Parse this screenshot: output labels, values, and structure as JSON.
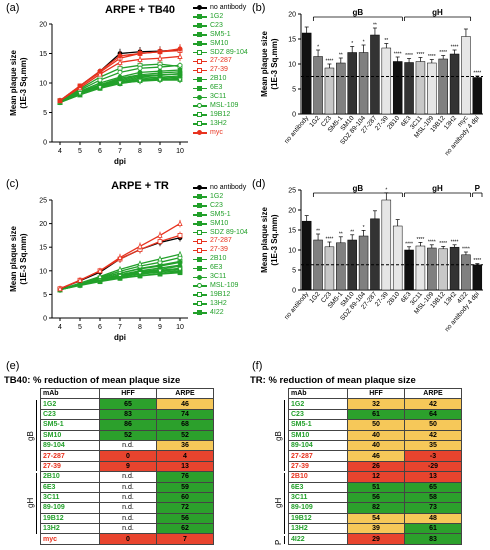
{
  "panels": {
    "a": {
      "letter": "(a)",
      "title": "ARPE + TB40"
    },
    "b": {
      "letter": "(b)"
    },
    "c": {
      "letter": "(c)",
      "title": "ARPE + TR"
    },
    "d": {
      "letter": "(d)"
    },
    "e": {
      "letter": "(e)",
      "title": "TB40: % reduction of mean plaque size"
    },
    "f": {
      "letter": "(f)",
      "title": "TR: % reduction of mean plaque size"
    }
  },
  "colors": {
    "black": "#000000",
    "green": "#22a02a",
    "red": "#e8321e",
    "bar_dark": "#333333",
    "bar_mid": "#808080",
    "bar_light": "#c8c8c8",
    "bar_pale": "#e6e6e6",
    "cell_green": "#2ca02c",
    "cell_yellow": "#f6c859",
    "cell_red": "#e8442e"
  },
  "chart_data": [
    {
      "id": "a",
      "type": "line",
      "title": "ARPE + TB40",
      "xlabel": "dpi",
      "ylabel": "Mean plaque size\n(1E-3 Sq.mm)",
      "x": [
        4,
        5,
        6,
        7,
        8,
        9,
        10
      ],
      "xlim": [
        3.6,
        10.4
      ],
      "ylim": [
        0,
        20
      ],
      "yticks": [
        0,
        5,
        10,
        15,
        20
      ],
      "series": [
        {
          "name": "no antibody",
          "color": "black",
          "marker": "circle",
          "values": [
            7,
            9.5,
            12,
            15,
            15.3,
            15.4,
            15.6
          ]
        },
        {
          "name": "1G2",
          "color": "green",
          "marker": "square",
          "values": [
            6.8,
            8.3,
            9.5,
            10.4,
            11,
            11.3,
            11.6
          ]
        },
        {
          "name": "C23",
          "color": "green",
          "marker": "square",
          "values": [
            6.8,
            8.2,
            9.3,
            10.2,
            10.8,
            11,
            11.2
          ]
        },
        {
          "name": "SM5-1",
          "color": "green",
          "marker": "triangle",
          "values": [
            6.7,
            8,
            9.2,
            10,
            10.6,
            10.8,
            11
          ]
        },
        {
          "name": "SM10",
          "color": "green",
          "marker": "triangle",
          "values": [
            6.7,
            8,
            9.1,
            9.9,
            10.4,
            10.6,
            10.8
          ]
        },
        {
          "name": "SDZ 89-104",
          "color": "green",
          "marker": "open-square",
          "values": [
            7,
            9,
            11,
            12.5,
            13,
            13.2,
            12.8
          ]
        },
        {
          "name": "27-287",
          "color": "red",
          "marker": "open-square",
          "values": [
            7,
            9.5,
            11.8,
            14.2,
            15,
            15.3,
            15.5
          ]
        },
        {
          "name": "27-39",
          "color": "red",
          "marker": "open-triangle",
          "values": [
            7,
            9.2,
            11.5,
            13.5,
            14,
            14.2,
            14.5
          ]
        },
        {
          "name": "2B10",
          "color": "green",
          "marker": "triangle-down",
          "values": [
            6.8,
            8.4,
            9.6,
            10.6,
            11.2,
            11.4,
            11.5
          ]
        },
        {
          "name": "6E3",
          "color": "green",
          "marker": "diamond",
          "values": [
            6.8,
            8.5,
            9.7,
            10.8,
            11.4,
            11.7,
            11.9
          ]
        },
        {
          "name": "3C11",
          "color": "green",
          "marker": "circle",
          "values": [
            6.8,
            8.6,
            10,
            11,
            11.8,
            12,
            12.2
          ]
        },
        {
          "name": "MSL-109",
          "color": "green",
          "marker": "open-circle",
          "values": [
            6.9,
            8.8,
            10.5,
            11.8,
            12.5,
            12.7,
            13
          ]
        },
        {
          "name": "19B12",
          "color": "green",
          "marker": "open-triangle",
          "values": [
            6.8,
            8.3,
            9.4,
            10.2,
            10.5,
            10.7,
            10.6
          ]
        },
        {
          "name": "13H2",
          "color": "green",
          "marker": "open-triangle-down",
          "values": [
            6.8,
            8.2,
            9.2,
            10,
            10.3,
            10.5,
            10.5
          ]
        },
        {
          "name": "myc",
          "color": "red",
          "marker": "circle",
          "values": [
            7,
            9.5,
            12,
            14.6,
            15,
            15.3,
            15.8
          ]
        }
      ]
    },
    {
      "id": "b",
      "type": "bar",
      "ylabel": "Mean plaque size\n(1E-3 Sq.mm)",
      "ylim": [
        0,
        20
      ],
      "yticks": [
        0,
        5,
        10,
        15,
        20
      ],
      "dashed_line": 7.5,
      "groups": [
        {
          "label": "gB",
          "from": 1,
          "to": 8
        },
        {
          "label": "gH",
          "from": 9,
          "to": 14
        }
      ],
      "categories": [
        "no antibody",
        "1G2",
        "C23",
        "SM5-1",
        "SM10",
        "SDZ 89-104",
        "27-287",
        "27-39",
        "2B10",
        "6E3",
        "3C11",
        "MSL-109",
        "19B12",
        "13H2",
        "myc",
        "no antibody 4 dpi"
      ],
      "values": [
        16.2,
        11.5,
        9.2,
        10.2,
        12.3,
        12.3,
        15.8,
        13.2,
        10.5,
        10.3,
        10.5,
        10.2,
        11,
        12,
        15.5,
        7.3
      ],
      "errors": [
        1.2,
        1.3,
        0.8,
        1,
        1.2,
        1.5,
        1.4,
        0.9,
        0.9,
        0.8,
        0.8,
        0.7,
        0.7,
        0.8,
        1.5,
        0.3
      ],
      "sig": [
        "",
        "*",
        "****",
        "**",
        "*",
        "*",
        "**",
        "**",
        "****",
        "****",
        "****",
        "****",
        "****",
        "****",
        "",
        "****"
      ],
      "shades": [
        "black",
        "mid",
        "light",
        "mid",
        "dark",
        "mid",
        "dark",
        "pale",
        "black",
        "dark",
        "light",
        "pale",
        "mid",
        "dark",
        "pale",
        "black"
      ]
    },
    {
      "id": "c",
      "type": "line",
      "title": "ARPE + TR",
      "xlabel": "dpi",
      "ylabel": "Mean plaque size\n(1E-3 Sq.mm)",
      "x": [
        4,
        5,
        6,
        7,
        8,
        9,
        10
      ],
      "xlim": [
        3.6,
        10.4
      ],
      "ylim": [
        0,
        25
      ],
      "yticks": [
        0,
        5,
        10,
        15,
        20,
        25
      ],
      "series": [
        {
          "name": "no antibody",
          "color": "black",
          "marker": "circle",
          "values": [
            6.2,
            7.9,
            9.7,
            12.5,
            14.5,
            16,
            17
          ]
        },
        {
          "name": "1G2",
          "color": "green",
          "marker": "square",
          "values": [
            6,
            7,
            7.8,
            8.5,
            9,
            9.4,
            9.8
          ]
        },
        {
          "name": "C23",
          "color": "green",
          "marker": "square",
          "values": [
            6,
            7,
            7.9,
            8.7,
            9.3,
            9.7,
            10
          ]
        },
        {
          "name": "SM5-1",
          "color": "green",
          "marker": "triangle",
          "values": [
            6,
            7.1,
            8,
            8.9,
            9.5,
            10,
            10.5
          ]
        },
        {
          "name": "SM10",
          "color": "green",
          "marker": "triangle",
          "values": [
            6,
            7.2,
            8.2,
            9.1,
            9.8,
            10.3,
            11
          ]
        },
        {
          "name": "SDZ 89-104",
          "color": "green",
          "marker": "open-square",
          "values": [
            6,
            7.3,
            8.5,
            9.5,
            10.5,
            11.2,
            12
          ]
        },
        {
          "name": "27-287",
          "color": "red",
          "marker": "open-square",
          "values": [
            6.2,
            8,
            10,
            12.5,
            14.5,
            16.2,
            17.5
          ]
        },
        {
          "name": "27-39",
          "color": "red",
          "marker": "open-triangle",
          "values": [
            6.2,
            8,
            10,
            12.8,
            15.2,
            17.5,
            20
          ]
        },
        {
          "name": "2B10",
          "color": "green",
          "marker": "triangle-down",
          "values": [
            6,
            7,
            8,
            9,
            9.6,
            10.1,
            10.5
          ]
        },
        {
          "name": "6E3",
          "color": "green",
          "marker": "diamond",
          "values": [
            6,
            7.1,
            8.2,
            9.2,
            10,
            10.6,
            11.2
          ]
        },
        {
          "name": "3C11",
          "color": "green",
          "marker": "circle",
          "values": [
            6,
            7.2,
            8.4,
            9.5,
            10.4,
            11,
            11.8
          ]
        },
        {
          "name": "MSL-109",
          "color": "green",
          "marker": "open-circle",
          "values": [
            6,
            7.3,
            8.6,
            9.9,
            11,
            11.8,
            12.8
          ]
        },
        {
          "name": "19B12",
          "color": "green",
          "marker": "open-triangle",
          "values": [
            6,
            7.4,
            8.8,
            10.3,
            11.5,
            12.5,
            13.5
          ]
        },
        {
          "name": "13H2",
          "color": "green",
          "marker": "open-triangle-down",
          "values": [
            6,
            7,
            7.9,
            8.8,
            9.4,
            9.9,
            10.3
          ]
        },
        {
          "name": "4I22",
          "color": "green",
          "marker": "square",
          "values": [
            6,
            6.9,
            7.7,
            8.4,
            8.9,
            9.3,
            9.6
          ]
        }
      ]
    },
    {
      "id": "d",
      "type": "bar",
      "ylabel": "Mean plaque size\n(1E-3 Sq.mm)",
      "ylim": [
        0,
        25
      ],
      "yticks": [
        0,
        5,
        10,
        15,
        20,
        25
      ],
      "dashed_line": 6.3,
      "groups": [
        {
          "label": "gB",
          "from": 1,
          "to": 8
        },
        {
          "label": "gH",
          "from": 9,
          "to": 14
        },
        {
          "label": "P",
          "from": 15,
          "to": 15
        }
      ],
      "categories": [
        "no antibody",
        "1G2",
        "C23",
        "SM5-1",
        "SM10",
        "SDZ 89-104",
        "27-287",
        "27-39",
        "2B10",
        "6E3",
        "3C11",
        "MSL-109",
        "19B12",
        "13H2",
        "4I22",
        "no antibody 4 dpi"
      ],
      "values": [
        17.2,
        12.5,
        10.8,
        11.8,
        12.5,
        13.5,
        17.8,
        22.5,
        16,
        10,
        11,
        10.5,
        10.3,
        10.7,
        8.8,
        6.3
      ],
      "errors": [
        1.4,
        1.5,
        1.2,
        1.5,
        1.3,
        1.4,
        2,
        1.8,
        1.6,
        0.8,
        0.9,
        0.8,
        0.6,
        0.6,
        0.7,
        0.3
      ],
      "sig": [
        "",
        "**",
        "****",
        "**",
        "**",
        "*",
        "",
        "*",
        "",
        "****",
        "****",
        "****",
        "****",
        "****",
        "****",
        "****"
      ],
      "shades": [
        "black",
        "mid",
        "light",
        "mid",
        "dark",
        "mid",
        "dark",
        "pale",
        "pale",
        "black",
        "pale",
        "mid",
        "light",
        "dark",
        "mid",
        "black"
      ]
    },
    {
      "id": "e",
      "type": "table",
      "title": "TB40: % reduction of mean plaque size",
      "columns": [
        "mAb",
        "HFF",
        "ARPE"
      ],
      "sections": [
        {
          "label": "gB",
          "rows": 7
        },
        {
          "label": "gH",
          "rows": 6
        }
      ],
      "rows": [
        {
          "mab": "1G2",
          "mab_color": "green",
          "hff": "65",
          "hff_fill": "green",
          "arpe": "46",
          "arpe_fill": "yellow"
        },
        {
          "mab": "C23",
          "mab_color": "green",
          "hff": "83",
          "hff_fill": "green",
          "arpe": "74",
          "arpe_fill": "green"
        },
        {
          "mab": "SM5-1",
          "mab_color": "green",
          "hff": "86",
          "hff_fill": "green",
          "arpe": "68",
          "arpe_fill": "green"
        },
        {
          "mab": "SM10",
          "mab_color": "green",
          "hff": "52",
          "hff_fill": "green",
          "arpe": "52",
          "arpe_fill": "green"
        },
        {
          "mab": "89-104",
          "mab_color": "green",
          "hff": "n.d.",
          "hff_fill": "none",
          "arpe": "36",
          "arpe_fill": "yellow"
        },
        {
          "mab": "27-287",
          "mab_color": "red",
          "hff": "0",
          "hff_fill": "red",
          "arpe": "4",
          "arpe_fill": "red"
        },
        {
          "mab": "27-39",
          "mab_color": "red",
          "hff": "9",
          "hff_fill": "red",
          "arpe": "13",
          "arpe_fill": "red"
        },
        {
          "mab": "2B10",
          "mab_color": "green",
          "hff": "n.d.",
          "hff_fill": "none",
          "arpe": "76",
          "arpe_fill": "green"
        },
        {
          "mab": "6E3",
          "mab_color": "green",
          "hff": "n.d.",
          "hff_fill": "none",
          "arpe": "59",
          "arpe_fill": "green"
        },
        {
          "mab": "3C11",
          "mab_color": "green",
          "hff": "n.d.",
          "hff_fill": "none",
          "arpe": "60",
          "arpe_fill": "green"
        },
        {
          "mab": "89-109",
          "mab_color": "green",
          "hff": "n.d.",
          "hff_fill": "none",
          "arpe": "72",
          "arpe_fill": "green"
        },
        {
          "mab": "19B12",
          "mab_color": "green",
          "hff": "n.d.",
          "hff_fill": "none",
          "arpe": "56",
          "arpe_fill": "green"
        },
        {
          "mab": "13H2",
          "mab_color": "green",
          "hff": "n.d.",
          "hff_fill": "none",
          "arpe": "62",
          "arpe_fill": "green"
        },
        {
          "mab": "myc",
          "mab_color": "red",
          "hff": "0",
          "hff_fill": "red",
          "arpe": "7",
          "arpe_fill": "red"
        }
      ]
    },
    {
      "id": "f",
      "type": "table",
      "title": "TR: % reduction of mean plaque size",
      "columns": [
        "mAb",
        "HFF",
        "ARPE"
      ],
      "sections": [
        {
          "label": "gB",
          "rows": 7
        },
        {
          "label": "gH",
          "rows": 6
        },
        {
          "label": "P",
          "rows": 1
        }
      ],
      "rows": [
        {
          "mab": "1G2",
          "mab_color": "green",
          "hff": "32",
          "hff_fill": "yellow",
          "arpe": "42",
          "arpe_fill": "yellow"
        },
        {
          "mab": "C23",
          "mab_color": "green",
          "hff": "61",
          "hff_fill": "green",
          "arpe": "64",
          "arpe_fill": "green"
        },
        {
          "mab": "SM5-1",
          "mab_color": "green",
          "hff": "50",
          "hff_fill": "yellow",
          "arpe": "50",
          "arpe_fill": "yellow"
        },
        {
          "mab": "SM10",
          "mab_color": "green",
          "hff": "40",
          "hff_fill": "yellow",
          "arpe": "42",
          "arpe_fill": "yellow"
        },
        {
          "mab": "89-104",
          "mab_color": "green",
          "hff": "40",
          "hff_fill": "yellow",
          "arpe": "35",
          "arpe_fill": "yellow"
        },
        {
          "mab": "27-287",
          "mab_color": "red",
          "hff": "46",
          "hff_fill": "yellow",
          "arpe": "-3",
          "arpe_fill": "red"
        },
        {
          "mab": "27-39",
          "mab_color": "red",
          "hff": "26",
          "hff_fill": "red",
          "arpe": "-29",
          "arpe_fill": "red"
        },
        {
          "mab": "2B10",
          "mab_color": "red",
          "hff": "12",
          "hff_fill": "red",
          "arpe": "13",
          "arpe_fill": "red"
        },
        {
          "mab": "6E3",
          "mab_color": "green",
          "hff": "51",
          "hff_fill": "green",
          "arpe": "65",
          "arpe_fill": "green"
        },
        {
          "mab": "3C11",
          "mab_color": "green",
          "hff": "56",
          "hff_fill": "green",
          "arpe": "58",
          "arpe_fill": "green"
        },
        {
          "mab": "89-109",
          "mab_color": "green",
          "hff": "82",
          "hff_fill": "green",
          "arpe": "73",
          "arpe_fill": "green"
        },
        {
          "mab": "19B12",
          "mab_color": "green",
          "hff": "54",
          "hff_fill": "yellow",
          "arpe": "48",
          "arpe_fill": "yellow"
        },
        {
          "mab": "13H2",
          "mab_color": "green",
          "hff": "39",
          "hff_fill": "yellow",
          "arpe": "61",
          "arpe_fill": "green"
        },
        {
          "mab": "4I22",
          "mab_color": "green",
          "hff": "29",
          "hff_fill": "red",
          "arpe": "83",
          "arpe_fill": "green"
        }
      ]
    }
  ]
}
